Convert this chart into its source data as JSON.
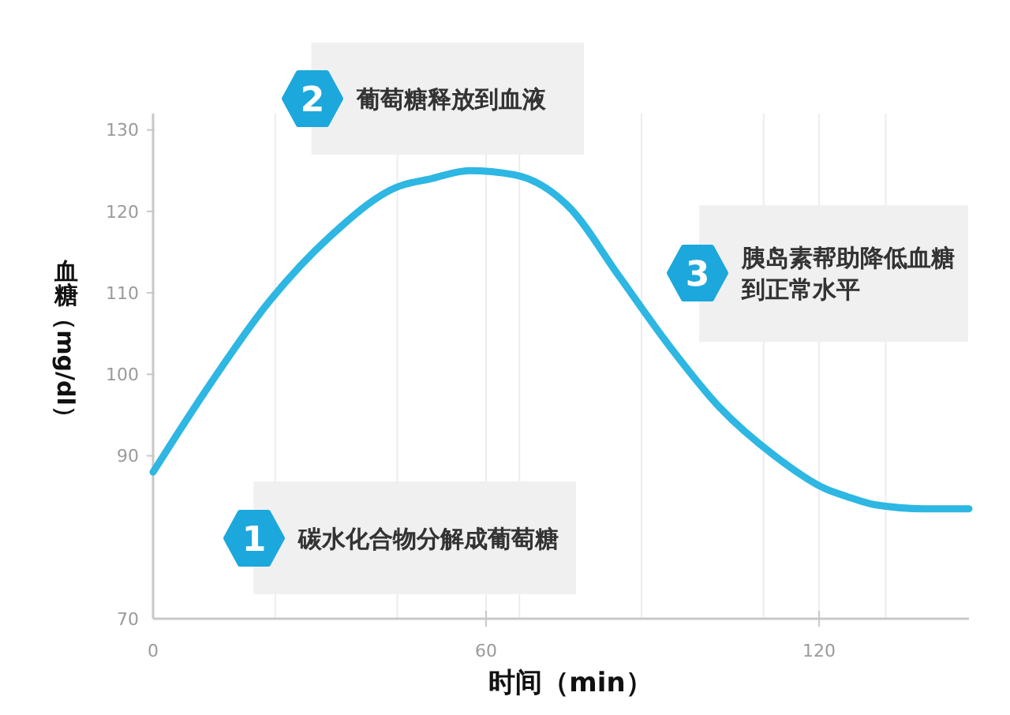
{
  "chart_data": {
    "type": "line",
    "xlabel": "时间（min）",
    "ylabel": "血糖（mg/dl）",
    "x": [
      0,
      9,
      21,
      32,
      44,
      50,
      57,
      65,
      75,
      84,
      93,
      102,
      112,
      121,
      125,
      130,
      139,
      147
    ],
    "series": [
      {
        "color": "#2db7e2",
        "values": [
          88,
          97.5,
          109,
          117,
          123,
          124,
          125,
          124.5,
          120.5,
          112,
          103.5,
          96,
          90,
          86,
          85,
          84,
          83.5,
          83.5
        ]
      }
    ],
    "xlim": [
      0,
      147
    ],
    "xticks": [
      0,
      {
        "value": 22,
        "label": null
      },
      {
        "value": 44,
        "label": null
      },
      60,
      {
        "value": 66,
        "label": null
      },
      {
        "value": 88,
        "label": null
      },
      {
        "value": 110,
        "label": null
      },
      120,
      {
        "value": 132,
        "label": null
      }
    ],
    "ylim": [
      70,
      132
    ],
    "yticks": [
      70,
      90,
      100,
      110,
      120,
      130
    ],
    "grid": "x",
    "annotations": [
      "1",
      "碳水化合物分解成葡萄糖",
      "2",
      "葡萄糖释放到血液",
      "3",
      "胰岛素帮助降低血糖到正常水平"
    ]
  }
}
